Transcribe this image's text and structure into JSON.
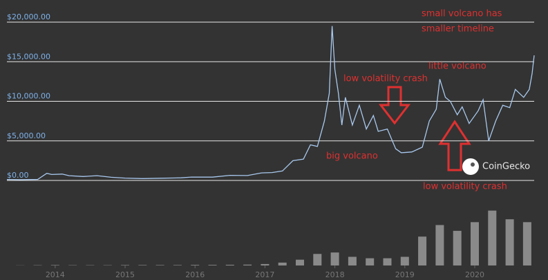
{
  "chart_data": [
    {
      "type": "line",
      "color": "#a9c9ef",
      "x": [
        2013.31,
        2013.5,
        2013.75,
        2013.88,
        2013.95,
        2014.1,
        2014.2,
        2014.4,
        2014.6,
        2014.8,
        2015.0,
        2015.25,
        2015.5,
        2015.8,
        2015.95,
        2016.25,
        2016.5,
        2016.75,
        2016.95,
        2017.1,
        2017.25,
        2017.4,
        2017.55,
        2017.65,
        2017.75,
        2017.85,
        2017.92,
        2017.96,
        2018.0,
        2018.05,
        2018.1,
        2018.15,
        2018.25,
        2018.35,
        2018.45,
        2018.55,
        2018.62,
        2018.75,
        2018.87,
        2018.95,
        2019.1,
        2019.25,
        2019.35,
        2019.45,
        2019.5,
        2019.58,
        2019.65,
        2019.75,
        2019.82,
        2019.92,
        2020.05,
        2020.12,
        2020.2,
        2020.3,
        2020.4,
        2020.5,
        2020.58,
        2020.7,
        2020.78,
        2020.82,
        2020.85
      ],
      "values": [
        120,
        100,
        130,
        900,
        750,
        800,
        600,
        500,
        600,
        400,
        300,
        240,
        280,
        330,
        430,
        420,
        650,
        620,
        950,
        1000,
        1200,
        2500,
        2700,
        4500,
        4300,
        7500,
        11000,
        19500,
        14000,
        11000,
        7000,
        10500,
        7000,
        9500,
        6500,
        8200,
        6200,
        6500,
        4000,
        3500,
        3600,
        4200,
        7500,
        9000,
        12800,
        10500,
        10000,
        8300,
        9300,
        7200,
        8800,
        10200,
        5000,
        7500,
        9500,
        9200,
        11500,
        10500,
        11500,
        13500,
        15800
      ],
      "xlim": [
        2013.31,
        2020.85
      ],
      "ylim": [
        0,
        20000
      ],
      "yticks": [
        {
          "value": 0,
          "label": "$0.00"
        },
        {
          "value": 5000,
          "label": "$5,000.00"
        },
        {
          "value": 10000,
          "label": "$10,000.00"
        },
        {
          "value": 15000,
          "label": "$15,000.00"
        },
        {
          "value": 20000,
          "label": "$20,000.00"
        }
      ],
      "grid": true,
      "annotations": [
        "small volcano has",
        "smaller timeline",
        "little volcano",
        "low volatility crash",
        "big volcano",
        "low volatility crash"
      ],
      "watermark": "CoinGecko"
    },
    {
      "type": "bar",
      "color": "#8a8a8a",
      "x": [
        2013.5,
        2013.75,
        2014.0,
        2014.25,
        2014.5,
        2014.75,
        2015.0,
        2015.25,
        2015.5,
        2015.75,
        2016.0,
        2016.25,
        2016.5,
        2016.75,
        2017.0,
        2017.25,
        2017.5,
        2017.75,
        2018.0,
        2018.25,
        2018.5,
        2018.75,
        2019.0,
        2019.25,
        2019.5,
        2019.75,
        2020.0,
        2020.25,
        2020.5,
        2020.75
      ],
      "values": [
        0.1,
        0.2,
        0.3,
        0.2,
        0.2,
        0.2,
        0.3,
        0.3,
        0.3,
        0.3,
        0.4,
        0.4,
        0.5,
        0.6,
        1,
        2,
        4,
        8,
        9,
        6,
        5,
        5,
        6,
        20,
        28,
        24,
        30,
        38,
        32,
        30
      ],
      "xlim": [
        2013.31,
        2020.85
      ],
      "ylim": [
        0,
        45
      ],
      "xticks": [
        2014,
        2015,
        2016,
        2017,
        2018,
        2019,
        2020
      ]
    }
  ]
}
